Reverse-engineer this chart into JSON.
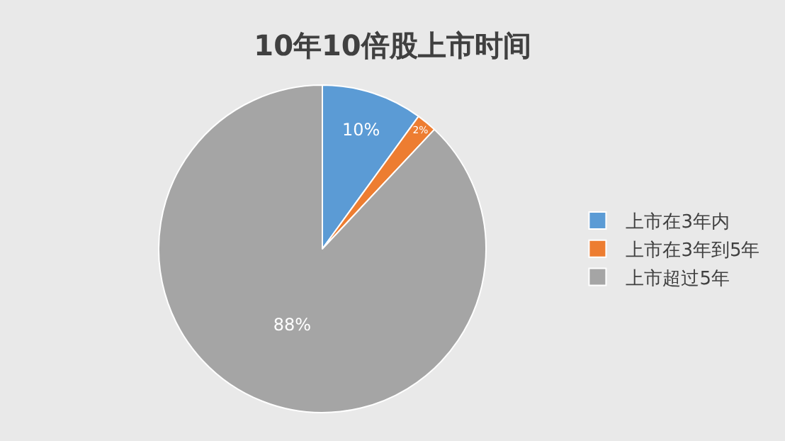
{
  "chart_data": {
    "type": "pie",
    "title": "10年10倍股上市时间",
    "categories": [
      "上市在3年内",
      "上市在3年到5年",
      "上市超过5年"
    ],
    "values": [
      10,
      2,
      88
    ],
    "colors": [
      "#5b9bd5",
      "#ed7d31",
      "#a5a5a5"
    ],
    "value_labels": [
      "10%",
      "2%",
      "88%"
    ],
    "legend": "right"
  }
}
